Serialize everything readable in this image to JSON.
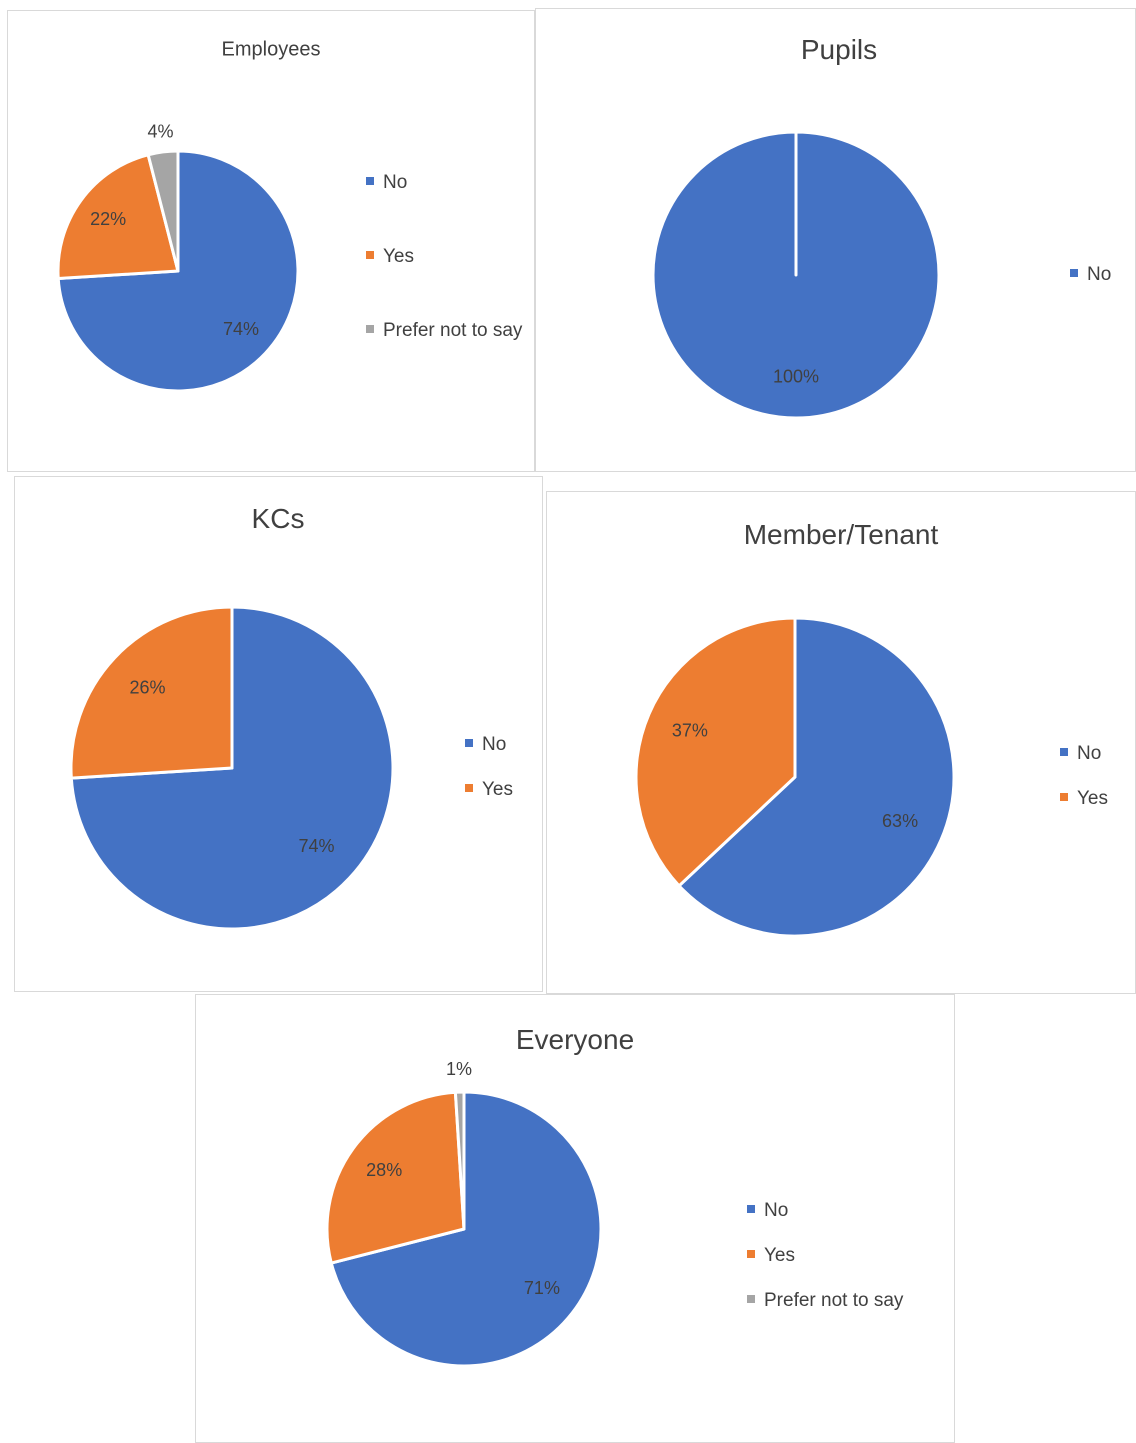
{
  "chart_data": [
    {
      "type": "pie",
      "title": "Employees",
      "categories": [
        "No",
        "Yes",
        "Prefer not to say"
      ],
      "values": [
        74,
        22,
        4
      ],
      "value_labels": [
        "74%",
        "22%",
        "4%"
      ],
      "colors": [
        "#4472c4",
        "#ed7d31",
        "#a5a5a5"
      ]
    },
    {
      "type": "pie",
      "title": "Pupils",
      "categories": [
        "No"
      ],
      "values": [
        100
      ],
      "value_labels": [
        "100%"
      ],
      "colors": [
        "#4472c4"
      ]
    },
    {
      "type": "pie",
      "title": "KCs",
      "categories": [
        "No",
        "Yes"
      ],
      "values": [
        74,
        26
      ],
      "value_labels": [
        "74%",
        "26%"
      ],
      "colors": [
        "#4472c4",
        "#ed7d31"
      ]
    },
    {
      "type": "pie",
      "title": "Member/Tenant",
      "categories": [
        "No",
        "Yes"
      ],
      "values": [
        63,
        37
      ],
      "value_labels": [
        "63%",
        "37%"
      ],
      "colors": [
        "#4472c4",
        "#ed7d31"
      ]
    },
    {
      "type": "pie",
      "title": "Everyone",
      "categories": [
        "No",
        "Yes",
        "Prefer not to say"
      ],
      "values": [
        71,
        28,
        1
      ],
      "value_labels": [
        "71%",
        "28%",
        "1%"
      ],
      "colors": [
        "#4472c4",
        "#ed7d31",
        "#a5a5a5"
      ]
    }
  ]
}
